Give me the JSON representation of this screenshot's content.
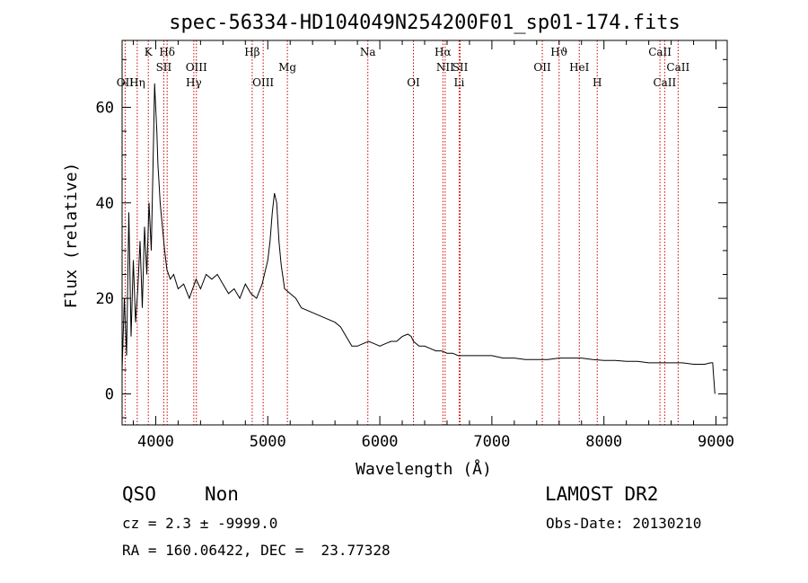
{
  "chart_data": {
    "type": "line",
    "title": "spec-56334-HD104049N254200F01_sp01-174.fits",
    "xlabel": "Wavelength (Å)",
    "ylabel": "Flux (relative)",
    "xlim": [
      3700,
      9100
    ],
    "ylim": [
      -6.5,
      74
    ],
    "xticks": [
      4000,
      5000,
      6000,
      7000,
      8000,
      9000
    ],
    "yticks": [
      0,
      20,
      40,
      60
    ],
    "series": [
      {
        "x": [
          3700,
          3720,
          3740,
          3760,
          3780,
          3800,
          3820,
          3840,
          3860,
          3880,
          3900,
          3920,
          3940,
          3960,
          3980,
          3990,
          4000,
          4010,
          4020,
          4030,
          4040,
          4060,
          4080,
          4100,
          4130,
          4160,
          4200,
          4250,
          4300,
          4330,
          4360,
          4400,
          4450,
          4500,
          4550,
          4600,
          4650,
          4700,
          4750,
          4800,
          4850,
          4900,
          4950,
          5000,
          5020,
          5040,
          5060,
          5080,
          5100,
          5120,
          5150,
          5200,
          5250,
          5300,
          5400,
          5500,
          5600,
          5650,
          5700,
          5750,
          5800,
          5850,
          5900,
          5950,
          6000,
          6050,
          6100,
          6150,
          6200,
          6250,
          6280,
          6300,
          6350,
          6400,
          6450,
          6500,
          6550,
          6600,
          6650,
          6700,
          6800,
          6900,
          7000,
          7100,
          7200,
          7300,
          7400,
          7500,
          7600,
          7700,
          7800,
          7900,
          8000,
          8100,
          8200,
          8300,
          8400,
          8500,
          8600,
          8700,
          8800,
          8900,
          8950,
          8970,
          8990
        ],
        "y": [
          5,
          20,
          8,
          38,
          12,
          28,
          15,
          22,
          32,
          18,
          35,
          25,
          40,
          30,
          52,
          65,
          60,
          55,
          48,
          44,
          40,
          35,
          30,
          26,
          24,
          25,
          22,
          23,
          20,
          22,
          24,
          22,
          25,
          24,
          25,
          23,
          21,
          22,
          20,
          23,
          21,
          20,
          23,
          28,
          32,
          38,
          42,
          40,
          32,
          27,
          22,
          21,
          20,
          18,
          17,
          16,
          15,
          14,
          12,
          10,
          10,
          10.5,
          11,
          10.5,
          10,
          10.5,
          11,
          11,
          12,
          12.5,
          12,
          11,
          10,
          10,
          9.5,
          9,
          9,
          8.5,
          8.5,
          8,
          8,
          8,
          8,
          7.5,
          7.5,
          7.2,
          7.2,
          7.2,
          7.5,
          7.5,
          7.5,
          7.2,
          7,
          7,
          6.8,
          6.8,
          6.5,
          6.5,
          6.5,
          6.5,
          6.2,
          6.2,
          6.5,
          6.5,
          0
        ]
      }
    ],
    "emission_lines": [
      {
        "label": "OII",
        "x": 3727,
        "row": "low"
      },
      {
        "label": "Hη",
        "x": 3835,
        "row": "low"
      },
      {
        "label": "K",
        "x": 3934,
        "row": "top"
      },
      {
        "label": "Hδ",
        "x": 4102,
        "row": "top"
      },
      {
        "label": "SII",
        "x": 4072,
        "row": "mid"
      },
      {
        "label": "OIII",
        "x": 4363,
        "row": "mid"
      },
      {
        "label": "Hγ",
        "x": 4340,
        "row": "low"
      },
      {
        "label": "Hβ",
        "x": 4861,
        "row": "top"
      },
      {
        "label": "OIII",
        "x": 4959,
        "row": "low"
      },
      {
        "label": "Mg",
        "x": 5175,
        "row": "mid"
      },
      {
        "label": "Na",
        "x": 5893,
        "row": "top"
      },
      {
        "label": "OI",
        "x": 6300,
        "row": "low"
      },
      {
        "label": "Hα",
        "x": 6563,
        "row": "top"
      },
      {
        "label": "NII",
        "x": 6583,
        "row": "mid"
      },
      {
        "label": "SII",
        "x": 6717,
        "row": "mid"
      },
      {
        "label": "Li",
        "x": 6708,
        "row": "low"
      },
      {
        "label": "OII",
        "x": 7450,
        "row": "mid"
      },
      {
        "label": "Hϑ",
        "x": 7600,
        "row": "top"
      },
      {
        "label": "HeI",
        "x": 7780,
        "row": "mid"
      },
      {
        "label": "H",
        "x": 7940,
        "row": "low"
      },
      {
        "label": "CaII",
        "x": 8500,
        "row": "top"
      },
      {
        "label": "CaII",
        "x": 8542,
        "row": "low"
      },
      {
        "label": "CaII",
        "x": 8662,
        "row": "mid"
      }
    ],
    "line_marker_color": "#cc0000",
    "grid": false
  },
  "info": {
    "class": "QSO",
    "subclass": "Non",
    "survey": "LAMOST DR2",
    "redshift": "cz = 2.3 ± -9999.0",
    "obs_date": "Obs-Date: 20130210",
    "coords": "RA = 160.06422, DEC =  23.77328"
  }
}
